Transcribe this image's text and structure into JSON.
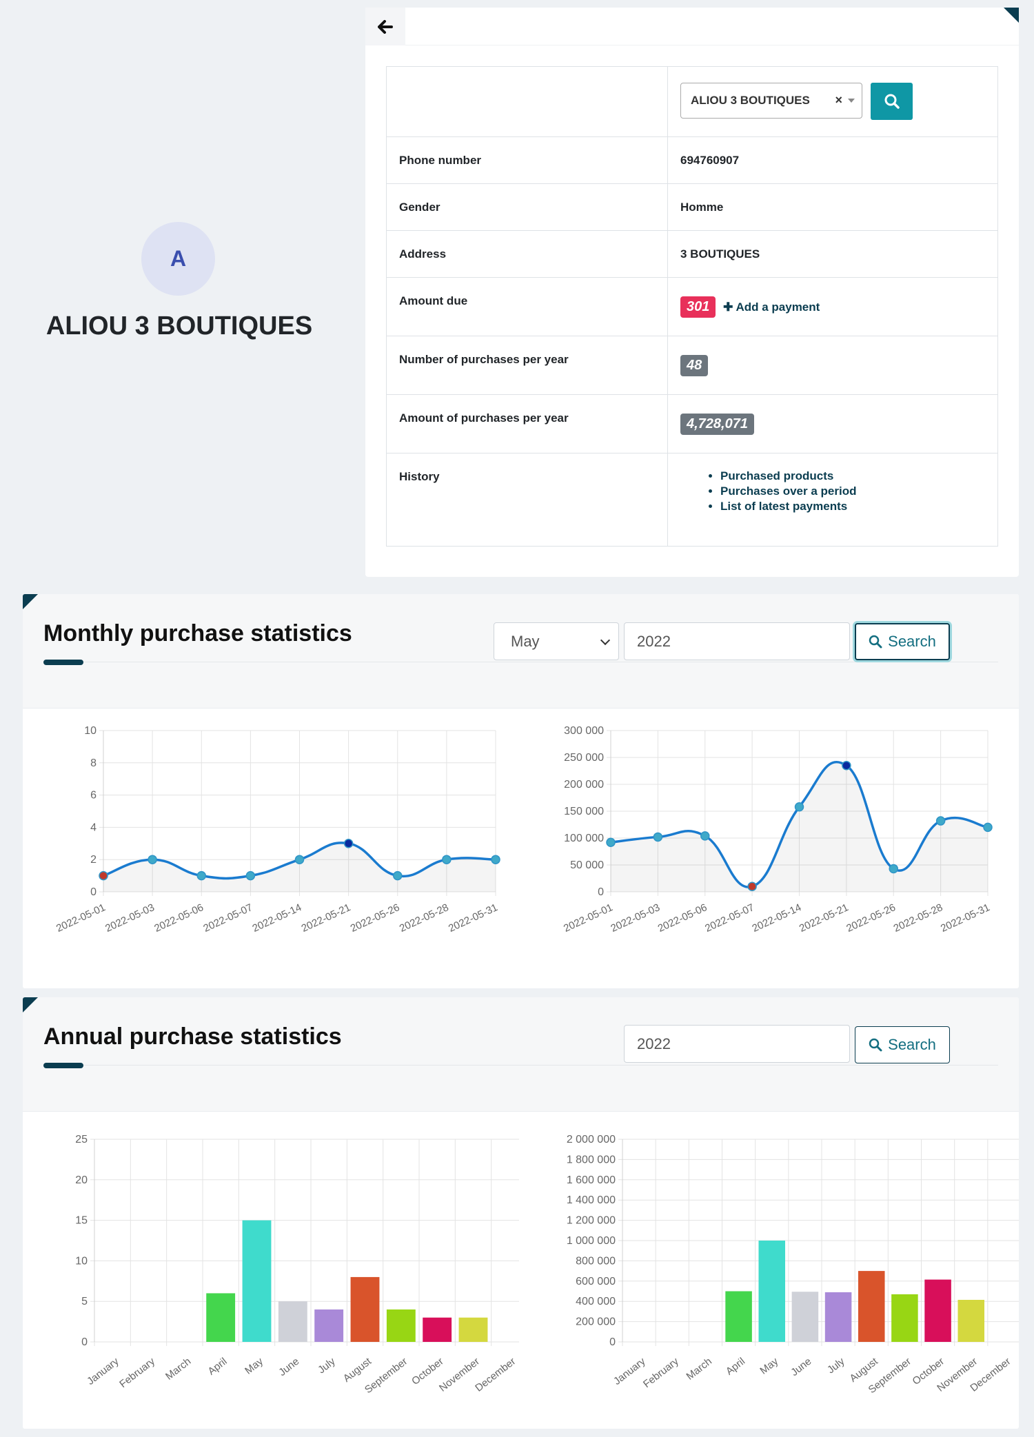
{
  "customer": {
    "initial": "A",
    "name": "ALIOU 3 BOUTIQUES",
    "selected": "ALIOU 3 BOUTIQUES",
    "clear_symbol": "×"
  },
  "info": {
    "rows": [
      {
        "label": "Phone number",
        "value": "694760907"
      },
      {
        "label": "Gender",
        "value": "Homme"
      },
      {
        "label": "Address",
        "value": "3 BOUTIQUES"
      }
    ],
    "amount_due_label": "Amount due",
    "amount_due": "301",
    "add_payment": "Add a payment",
    "purchases_count_label": "Number of purchases per year",
    "purchases_count": "48",
    "purchases_amount_label": "Amount of purchases per year",
    "purchases_amount": "4,728,071",
    "history_label": "History",
    "history_links": [
      "Purchased products",
      "Purchases over a period",
      "List of latest payments"
    ]
  },
  "monthly": {
    "title": "Monthly purchase statistics",
    "month": "May",
    "year": "2022",
    "search_label": "Search"
  },
  "annual": {
    "title": "Annual purchase statistics",
    "year": "2022",
    "search_label": "Search"
  },
  "colors": {
    "accent": "#0b3d50",
    "teal": "#0f97a5",
    "line": "#1a7bcf",
    "danger": "#e8305a"
  },
  "chart_data": [
    {
      "type": "line",
      "x": [
        "2022-05-01",
        "2022-05-03",
        "2022-05-06",
        "2022-05-07",
        "2022-05-14",
        "2022-05-21",
        "2022-05-26",
        "2022-05-28",
        "2022-05-31"
      ],
      "values": [
        1,
        2,
        1,
        1,
        2,
        3,
        1,
        2,
        2
      ],
      "yticks": [
        "0",
        "2",
        "4",
        "6",
        "8",
        "10"
      ],
      "ylim": [
        0,
        10
      ],
      "grid": true,
      "point_colors": [
        "#c0392b",
        "#3fa9c9",
        "#3fa9c9",
        "#3fa9c9",
        "#3fa9c9",
        "#0a2a9e",
        "#3fa9c9",
        "#3fa9c9",
        "#3fa9c9"
      ]
    },
    {
      "type": "line",
      "x": [
        "2022-05-01",
        "2022-05-03",
        "2022-05-06",
        "2022-05-07",
        "2022-05-14",
        "2022-05-21",
        "2022-05-26",
        "2022-05-28",
        "2022-05-31"
      ],
      "values": [
        92000,
        102000,
        104000,
        10000,
        158000,
        235000,
        43000,
        132000,
        120000
      ],
      "yticks": [
        "0",
        "50 000",
        "100 000",
        "150 000",
        "200 000",
        "250 000",
        "300 000"
      ],
      "ylim": [
        0,
        300000
      ],
      "grid": true,
      "point_colors": [
        "#3fa9c9",
        "#3fa9c9",
        "#3fa9c9",
        "#c0392b",
        "#3fa9c9",
        "#0a2a9e",
        "#3fa9c9",
        "#3fa9c9",
        "#3fa9c9"
      ]
    },
    {
      "type": "bar",
      "categories": [
        "January",
        "February",
        "March",
        "April",
        "May",
        "June",
        "July",
        "August",
        "September",
        "October",
        "November",
        "December"
      ],
      "values": [
        0,
        0,
        0,
        6,
        15,
        5,
        4,
        8,
        4,
        3,
        3,
        0
      ],
      "yticks": [
        "0",
        "5",
        "10",
        "15",
        "20",
        "25"
      ],
      "ylim": [
        0,
        25
      ],
      "grid": true,
      "colors": [
        "#44d64d",
        "#44d64d",
        "#44d64d",
        "#44d64d",
        "#3fdbcc",
        "#cfd1d8",
        "#a989d8",
        "#d9542b",
        "#98d614",
        "#d80f5a",
        "#d4d83f",
        "#d4d83f"
      ]
    },
    {
      "type": "bar",
      "categories": [
        "January",
        "February",
        "March",
        "April",
        "May",
        "June",
        "July",
        "August",
        "September",
        "October",
        "November",
        "December"
      ],
      "values": [
        0,
        0,
        0,
        500000,
        1000000,
        495000,
        490000,
        700000,
        470000,
        615000,
        415000,
        0
      ],
      "yticks": [
        "0",
        "200 000",
        "400 000",
        "600 000",
        "800 000",
        "1 000 000",
        "1 200 000",
        "1 400 000",
        "1 600 000",
        "1 800 000",
        "2 000 000"
      ],
      "ylim": [
        0,
        2000000
      ],
      "grid": true,
      "colors": [
        "#44d64d",
        "#44d64d",
        "#44d64d",
        "#44d64d",
        "#3fdbcc",
        "#cfd1d8",
        "#a989d8",
        "#d9542b",
        "#98d614",
        "#d80f5a",
        "#d4d83f",
        "#d4d83f"
      ]
    }
  ]
}
